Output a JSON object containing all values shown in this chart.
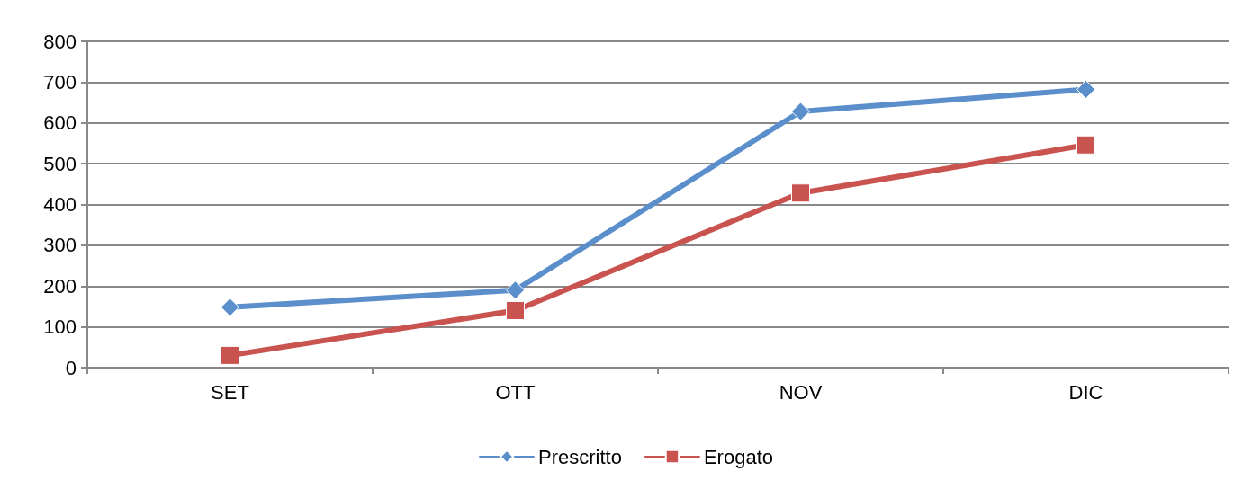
{
  "chart_data": {
    "type": "line",
    "categories": [
      "SET",
      "OTT",
      "NOV",
      "DIC"
    ],
    "series": [
      {
        "name": "Prescritto",
        "color": "#5b8fcc",
        "marker": "diamond",
        "values": [
          148,
          190,
          628,
          682
        ]
      },
      {
        "name": "Erogato",
        "color": "#c9534f",
        "marker": "square",
        "values": [
          30,
          140,
          428,
          546
        ]
      }
    ],
    "ylim": [
      0,
      800
    ],
    "yticks": [
      0,
      100,
      200,
      300,
      400,
      500,
      600,
      700,
      800
    ],
    "grid": "y",
    "legend": "bottom",
    "line_style": "solid"
  }
}
